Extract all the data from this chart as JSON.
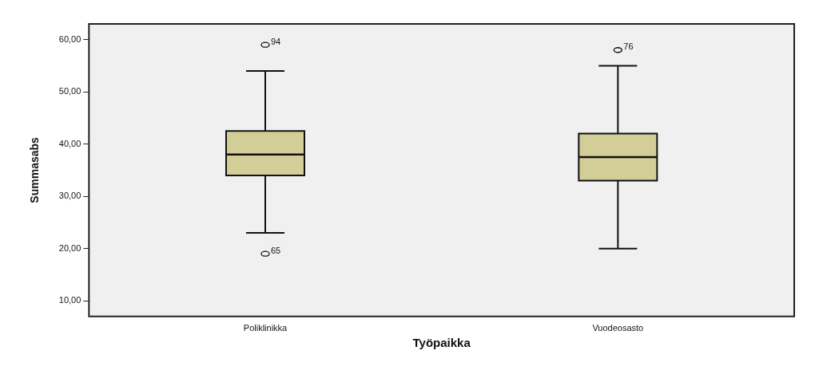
{
  "chart_data": {
    "type": "box",
    "xlabel": "Työpaikka",
    "ylabel": "Summasabs",
    "categories": [
      "Poliklinikka",
      "Vuodeosasto"
    ],
    "color": "#d3ce97",
    "boxes": [
      {
        "low": 23,
        "q1": 34,
        "median": 38,
        "q3": 42.5,
        "high": 54,
        "outliers": [
          59,
          19
        ]
      },
      {
        "low": 20,
        "q1": 33,
        "median": 37.5,
        "q3": 42,
        "high": 55,
        "outliers": [
          58
        ]
      }
    ],
    "ylim": [
      7,
      63
    ],
    "yticks": [
      {
        "value": 10,
        "label": "10,00"
      },
      {
        "value": 20,
        "label": "20,00"
      },
      {
        "value": 30,
        "label": "30,00"
      },
      {
        "value": 40,
        "label": "40,00"
      },
      {
        "value": 50,
        "label": "50,00"
      },
      {
        "value": 60,
        "label": "60,00"
      }
    ],
    "annotations": [
      "94",
      "65",
      "76"
    ],
    "grid": false,
    "legend": false
  }
}
